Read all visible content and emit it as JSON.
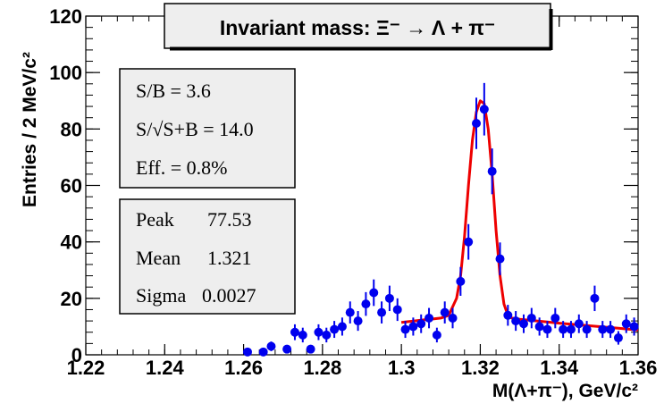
{
  "chart_data": {
    "type": "scatter",
    "title": "Invariant mass: Ξ⁻ → Λ + π⁻",
    "xlabel": "M(Λ+π⁻), GeV/c²",
    "ylabel": "Entries / 2 MeV/c²",
    "xlim": [
      1.22,
      1.36
    ],
    "ylim": [
      0,
      120
    ],
    "x_ticks": [
      "1.22",
      "1.24",
      "1.26",
      "1.28",
      "1.3",
      "1.32",
      "1.34",
      "1.36"
    ],
    "y_ticks": [
      "0",
      "20",
      "40",
      "60",
      "80",
      "100",
      "120"
    ],
    "series": [
      {
        "kind": "points",
        "color": "#0000ee",
        "x": [
          1.261,
          1.265,
          1.267,
          1.271,
          1.273,
          1.275,
          1.277,
          1.279,
          1.281,
          1.283,
          1.285,
          1.287,
          1.289,
          1.291,
          1.293,
          1.295,
          1.297,
          1.299,
          1.301,
          1.303,
          1.305,
          1.307,
          1.309,
          1.311,
          1.313,
          1.315,
          1.317,
          1.319,
          1.321,
          1.323,
          1.325,
          1.327,
          1.329,
          1.331,
          1.333,
          1.335,
          1.337,
          1.339,
          1.341,
          1.343,
          1.345,
          1.347,
          1.349,
          1.351,
          1.353,
          1.355,
          1.357,
          1.359
        ],
        "y": [
          1,
          1,
          3,
          2,
          8,
          7,
          2,
          8,
          7,
          9,
          10,
          15,
          12,
          18,
          22,
          15,
          20,
          16,
          9,
          10,
          11,
          13,
          7,
          15,
          13,
          26,
          40,
          82,
          87,
          65,
          34,
          14,
          12,
          11,
          13,
          10,
          9,
          13,
          9,
          9,
          11,
          9,
          20,
          9,
          9,
          6,
          11,
          10
        ],
        "errors": [
          1.0,
          1.0,
          1.7,
          1.4,
          2.8,
          2.6,
          1.4,
          2.8,
          2.6,
          3.0,
          3.2,
          3.9,
          3.5,
          4.2,
          4.7,
          3.9,
          4.5,
          4.0,
          3.0,
          3.2,
          3.3,
          3.6,
          2.6,
          3.9,
          3.6,
          5.1,
          6.3,
          9.1,
          9.3,
          8.1,
          5.8,
          3.7,
          3.5,
          3.3,
          3.6,
          3.2,
          3.0,
          3.6,
          3.0,
          3.0,
          3.3,
          3.0,
          4.5,
          3.0,
          3.0,
          2.4,
          3.3,
          3.2
        ]
      },
      {
        "kind": "fit",
        "color": "#ee0000",
        "x": [
          1.3,
          1.302,
          1.304,
          1.306,
          1.308,
          1.31,
          1.312,
          1.314,
          1.315,
          1.316,
          1.317,
          1.318,
          1.319,
          1.32,
          1.321,
          1.322,
          1.323,
          1.324,
          1.325,
          1.326,
          1.327,
          1.328,
          1.33,
          1.335,
          1.34,
          1.345,
          1.35,
          1.355,
          1.36
        ],
        "y": [
          11.5,
          11.8,
          12.1,
          12.4,
          12.7,
          13.0,
          14.0,
          20.0,
          28.0,
          42.0,
          60.0,
          76.0,
          86.0,
          90.0,
          89.0,
          80.0,
          64.0,
          44.0,
          28.0,
          18.0,
          14.0,
          13.0,
          12.6,
          11.9,
          11.2,
          10.6,
          10.0,
          9.4,
          8.8
        ]
      }
    ],
    "stats_box_1": [
      "S/B = 3.6",
      "S/√S+B = 14.0",
      "Eff. = 0.8%"
    ],
    "stats_box_2": [
      {
        "name": "Peak",
        "value": "77.53"
      },
      {
        "name": "Mean",
        "value": "1.321"
      },
      {
        "name": "Sigma",
        "value": "0.0027"
      }
    ]
  }
}
